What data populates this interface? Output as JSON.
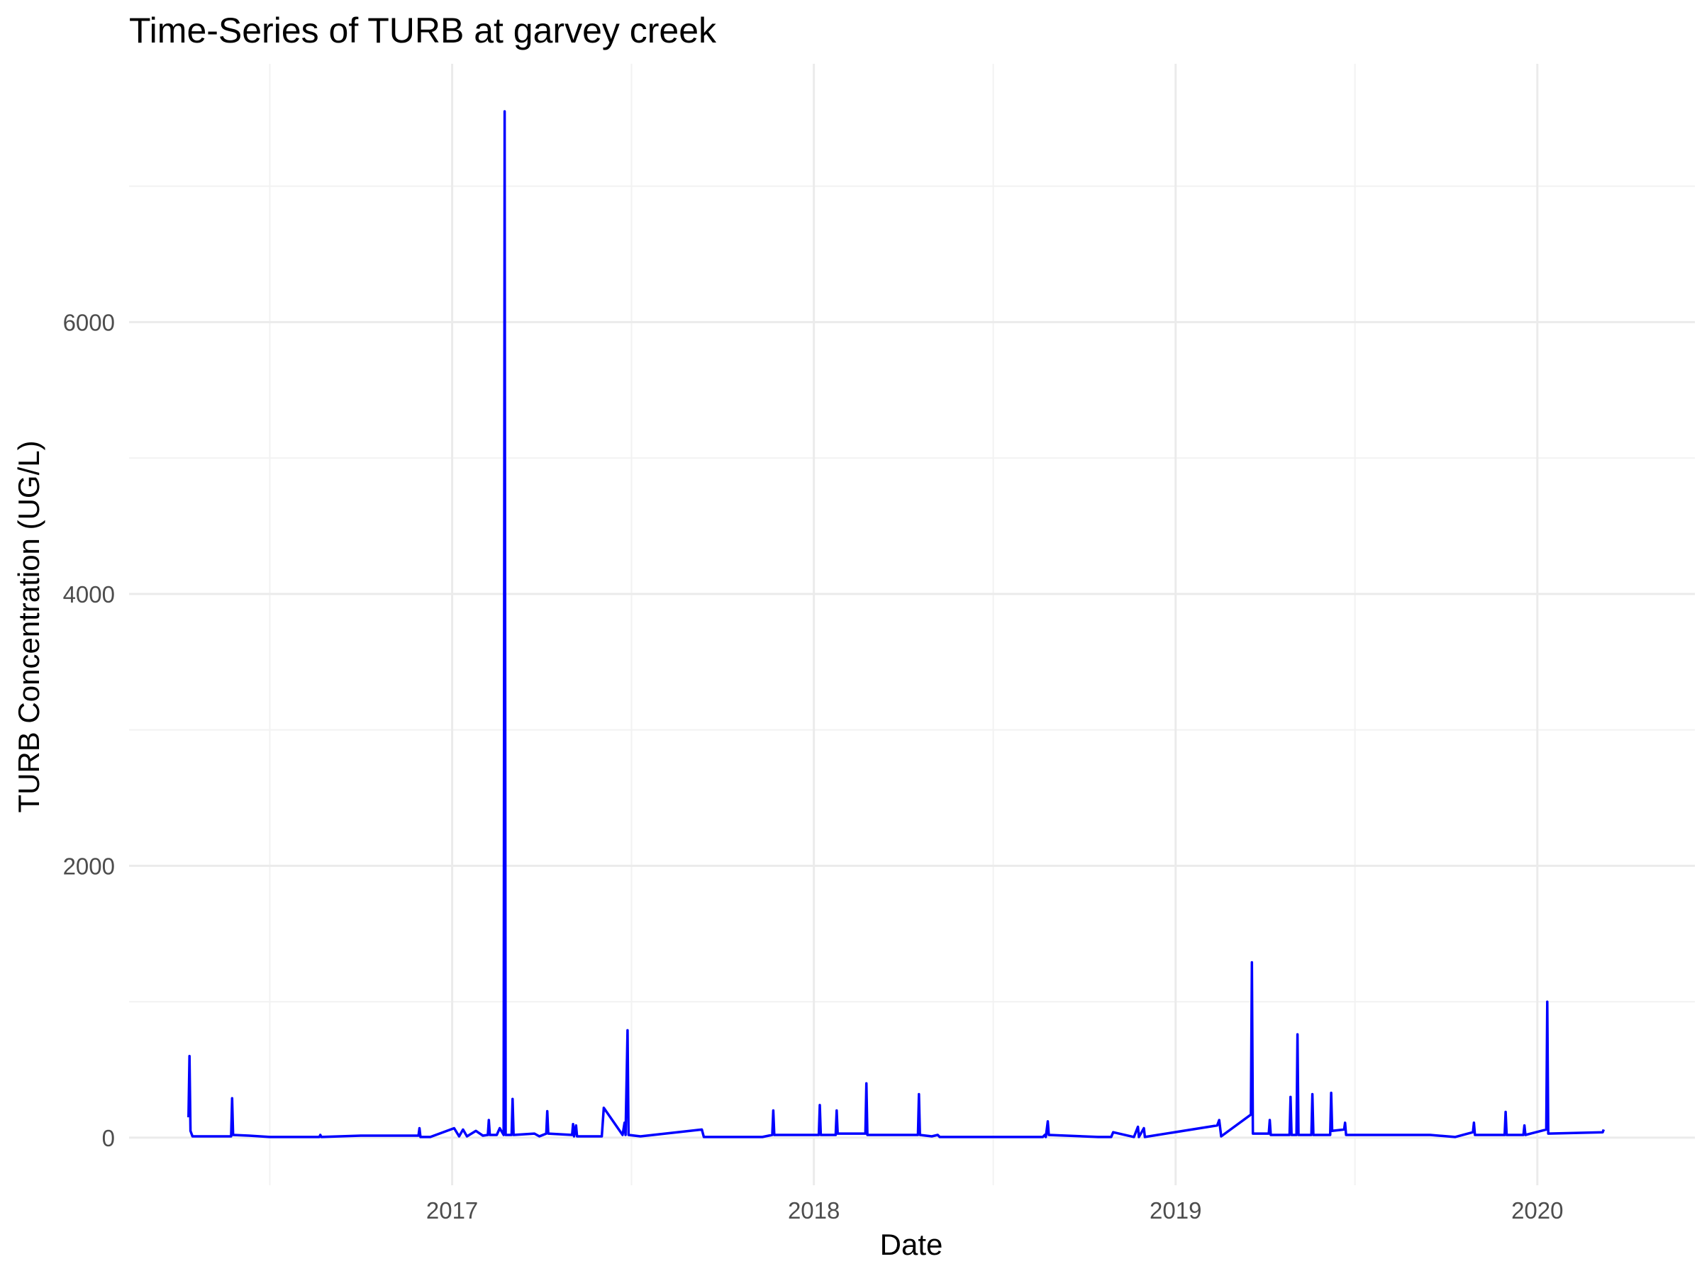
{
  "chart_data": {
    "type": "line",
    "title": "Time-Series of TURB at garvey creek",
    "xlabel": "Date",
    "ylabel": "TURB Concentration (UG/L)",
    "x_ticks": [
      "2017",
      "2018",
      "2019",
      "2020"
    ],
    "y_ticks": [
      0,
      2000,
      4000,
      6000
    ],
    "xlim": [
      "2016-02-10",
      "2020-06-08"
    ],
    "ylim": [
      -350,
      7900
    ],
    "grid": true,
    "legend": "none",
    "colors": {
      "line": "#0000ff",
      "grid": "#ebebeb",
      "background": "#ffffff"
    },
    "series": [
      {
        "color": "#0000ff",
        "points": [
          [
            "2016-04-10",
            150
          ],
          [
            "2016-04-11",
            600
          ],
          [
            "2016-04-12",
            50
          ],
          [
            "2016-04-14",
            10
          ],
          [
            "2016-05-23",
            10
          ],
          [
            "2016-05-24",
            290
          ],
          [
            "2016-05-25",
            20
          ],
          [
            "2016-06-10",
            15
          ],
          [
            "2016-07-01",
            5
          ],
          [
            "2016-08-20",
            5
          ],
          [
            "2016-08-21",
            20
          ],
          [
            "2016-08-22",
            5
          ],
          [
            "2016-10-01",
            15
          ],
          [
            "2016-11-28",
            15
          ],
          [
            "2016-11-29",
            70
          ],
          [
            "2016-11-30",
            5
          ],
          [
            "2016-12-10",
            5
          ],
          [
            "2017-01-03",
            70
          ],
          [
            "2017-01-08",
            10
          ],
          [
            "2017-01-12",
            60
          ],
          [
            "2017-01-16",
            10
          ],
          [
            "2017-01-25",
            50
          ],
          [
            "2017-02-01",
            15
          ],
          [
            "2017-02-06",
            20
          ],
          [
            "2017-02-07",
            130
          ],
          [
            "2017-02-08",
            20
          ],
          [
            "2017-02-15",
            20
          ],
          [
            "2017-02-18",
            70
          ],
          [
            "2017-02-22",
            20
          ],
          [
            "2017-02-23",
            7550
          ],
          [
            "2017-02-24",
            20
          ],
          [
            "2017-03-02",
            20
          ],
          [
            "2017-03-03",
            285
          ],
          [
            "2017-03-04",
            20
          ],
          [
            "2017-03-25",
            30
          ],
          [
            "2017-03-30",
            10
          ],
          [
            "2017-04-06",
            30
          ],
          [
            "2017-04-07",
            195
          ],
          [
            "2017-04-08",
            30
          ],
          [
            "2017-05-02",
            20
          ],
          [
            "2017-05-03",
            100
          ],
          [
            "2017-05-04",
            10
          ],
          [
            "2017-05-06",
            90
          ],
          [
            "2017-05-07",
            10
          ],
          [
            "2017-06-01",
            10
          ],
          [
            "2017-06-03",
            220
          ],
          [
            "2017-06-22",
            20
          ],
          [
            "2017-06-24",
            110
          ],
          [
            "2017-06-25",
            20
          ],
          [
            "2017-06-27",
            790
          ],
          [
            "2017-06-28",
            20
          ],
          [
            "2017-07-10",
            10
          ],
          [
            "2017-09-10",
            60
          ],
          [
            "2017-09-12",
            5
          ],
          [
            "2017-11-10",
            5
          ],
          [
            "2017-11-20",
            20
          ],
          [
            "2017-11-21",
            200
          ],
          [
            "2017-11-22",
            20
          ],
          [
            "2018-01-06",
            20
          ],
          [
            "2018-01-07",
            240
          ],
          [
            "2018-01-08",
            20
          ],
          [
            "2018-01-23",
            20
          ],
          [
            "2018-01-24",
            200
          ],
          [
            "2018-01-25",
            30
          ],
          [
            "2018-02-22",
            30
          ],
          [
            "2018-02-23",
            400
          ],
          [
            "2018-02-24",
            20
          ],
          [
            "2018-04-16",
            20
          ],
          [
            "2018-04-17",
            320
          ],
          [
            "2018-04-18",
            20
          ],
          [
            "2018-04-30",
            10
          ],
          [
            "2018-05-06",
            20
          ],
          [
            "2018-05-08",
            5
          ],
          [
            "2018-08-20",
            5
          ],
          [
            "2018-08-22",
            20
          ],
          [
            "2018-08-23",
            5
          ],
          [
            "2018-08-25",
            120
          ],
          [
            "2018-08-26",
            20
          ],
          [
            "2018-10-15",
            5
          ],
          [
            "2018-10-28",
            5
          ],
          [
            "2018-10-30",
            40
          ],
          [
            "2018-11-20",
            5
          ],
          [
            "2018-11-24",
            80
          ],
          [
            "2018-11-25",
            5
          ],
          [
            "2018-11-30",
            70
          ],
          [
            "2018-12-01",
            5
          ],
          [
            "2019-02-12",
            90
          ],
          [
            "2019-02-14",
            130
          ],
          [
            "2019-02-16",
            10
          ],
          [
            "2019-03-18",
            170
          ],
          [
            "2019-03-19",
            1290
          ],
          [
            "2019-03-20",
            30
          ],
          [
            "2019-04-05",
            30
          ],
          [
            "2019-04-06",
            130
          ],
          [
            "2019-04-07",
            20
          ],
          [
            "2019-04-26",
            20
          ],
          [
            "2019-04-27",
            300
          ],
          [
            "2019-04-28",
            20
          ],
          [
            "2019-05-03",
            20
          ],
          [
            "2019-05-04",
            760
          ],
          [
            "2019-05-05",
            20
          ],
          [
            "2019-05-18",
            20
          ],
          [
            "2019-05-19",
            320
          ],
          [
            "2019-05-20",
            20
          ],
          [
            "2019-06-06",
            20
          ],
          [
            "2019-06-07",
            330
          ],
          [
            "2019-06-08",
            50
          ],
          [
            "2019-06-20",
            60
          ],
          [
            "2019-06-21",
            110
          ],
          [
            "2019-06-22",
            20
          ],
          [
            "2019-08-01",
            20
          ],
          [
            "2019-09-15",
            20
          ],
          [
            "2019-10-10",
            5
          ],
          [
            "2019-10-28",
            40
          ],
          [
            "2019-10-29",
            110
          ],
          [
            "2019-10-30",
            20
          ],
          [
            "2019-11-29",
            20
          ],
          [
            "2019-11-30",
            190
          ],
          [
            "2019-12-01",
            20
          ],
          [
            "2019-12-18",
            20
          ],
          [
            "2019-12-19",
            90
          ],
          [
            "2019-12-20",
            20
          ],
          [
            "2020-01-10",
            60
          ],
          [
            "2020-01-11",
            1000
          ],
          [
            "2020-01-12",
            30
          ],
          [
            "2020-03-07",
            40
          ],
          [
            "2020-03-08",
            60
          ]
        ]
      }
    ]
  }
}
